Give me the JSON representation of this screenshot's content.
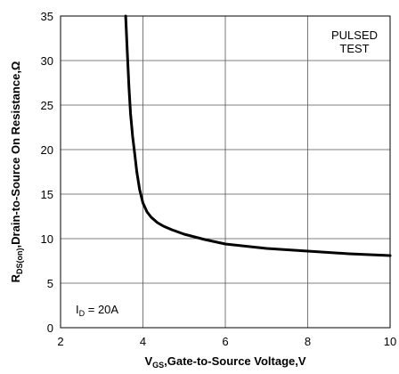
{
  "chart_data": {
    "type": "line",
    "title": "",
    "xlabel": {
      "main": "V",
      "sub": "GS",
      "rest": ",Gate-to-Source Voltage,V"
    },
    "ylabel": {
      "main": "R",
      "sub": "DS(on)",
      "rest": ",Drain-to-Source On Resistance,Ω"
    },
    "xlim": [
      2,
      10
    ],
    "ylim": [
      0,
      35
    ],
    "xticks": [
      2,
      4,
      6,
      8,
      10
    ],
    "yticks": [
      0,
      5,
      10,
      15,
      20,
      25,
      30,
      35
    ],
    "grid": true,
    "series": [
      {
        "x": [
          3.58,
          3.62,
          3.66,
          3.7,
          3.75,
          3.8,
          3.85,
          3.92,
          4.0,
          4.1,
          4.2,
          4.35,
          4.5,
          4.7,
          5.0,
          5.5,
          6.0,
          7.0,
          8.0,
          9.0,
          10.0
        ],
        "y": [
          35.0,
          31.0,
          27.0,
          24.0,
          21.5,
          19.5,
          17.5,
          15.5,
          14.0,
          13.0,
          12.4,
          11.8,
          11.4,
          11.0,
          10.5,
          9.9,
          9.4,
          8.9,
          8.6,
          8.3,
          8.1
        ]
      }
    ],
    "annotations": {
      "top_right": [
        "PULSED",
        "TEST"
      ],
      "bottom_left": {
        "main": "I",
        "sub": "D",
        "rest": " = 20A"
      }
    }
  }
}
